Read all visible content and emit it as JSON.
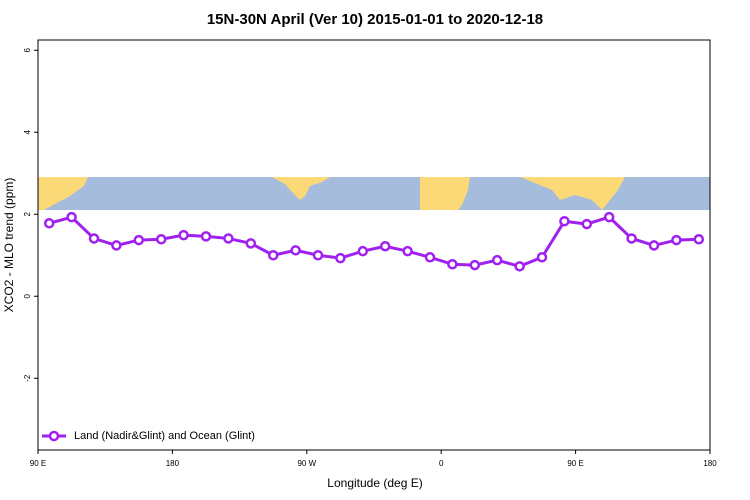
{
  "chart_data": {
    "type": "line",
    "title": "15N-30N April (Ver 10)   2015-01-01 to 2020-12-18",
    "x_label": "Longitude (deg E)",
    "y_label": "XCO2 - MLO trend (ppm)",
    "xlim": [
      90,
      540
    ],
    "ylim": [
      -3.75,
      6.25
    ],
    "xticks": [
      {
        "value": 90,
        "label": "90 E"
      },
      180,
      {
        "value": 270,
        "label": "90 W"
      },
      {
        "value": 360,
        "label": "0"
      },
      {
        "value": 450,
        "label": "90 E"
      },
      {
        "value": 540,
        "label": "180"
      }
    ],
    "yticks": [
      -2,
      0,
      2,
      4,
      6
    ],
    "legend": "bottom-left",
    "x": [
      97.5,
      112.5,
      127.5,
      142.5,
      157.5,
      172.5,
      187.5,
      202.5,
      217.5,
      232.5,
      247.5,
      262.5,
      277.5,
      292.5,
      307.5,
      322.5,
      337.5,
      352.5,
      367.5,
      382.5,
      397.5,
      412.5,
      427.5,
      442.5,
      457.5,
      472.5,
      487.5,
      502.5,
      517.5,
      532.5
    ],
    "series": [
      {
        "name": "Land (Nadir&Glint) and Ocean (Glint)",
        "color": "#a020f0",
        "values": [
          1.78,
          1.93,
          1.41,
          1.24,
          1.37,
          1.39,
          1.49,
          1.46,
          1.41,
          1.29,
          1.0,
          1.12,
          1.0,
          0.93,
          1.1,
          1.22,
          1.1,
          0.95,
          0.78,
          0.76,
          0.88,
          0.73,
          0.95,
          1.83,
          1.76,
          1.93,
          1.41,
          1.24,
          1.37,
          1.39
        ]
      }
    ]
  }
}
